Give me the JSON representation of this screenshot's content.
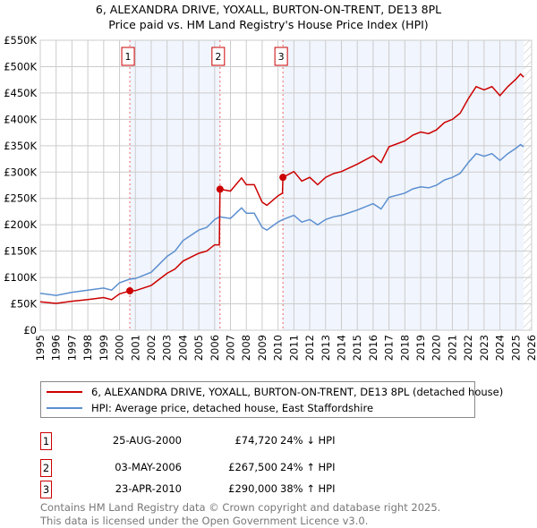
{
  "chart_data": {
    "type": "line",
    "title": "6, ALEXANDRA DRIVE, YOXALL, BURTON-ON-TRENT, DE13 8PL",
    "subtitle": "Price paid vs. HM Land Registry's House Price Index (HPI)",
    "xlim": [
      1995,
      2026
    ],
    "ylim": [
      0,
      550000
    ],
    "x_ticks": [
      "1995",
      "1996",
      "1997",
      "1998",
      "1999",
      "2000",
      "2001",
      "2002",
      "2003",
      "2004",
      "2005",
      "2006",
      "2007",
      "2008",
      "2009",
      "2010",
      "2011",
      "2012",
      "2013",
      "2014",
      "2015",
      "2016",
      "2017",
      "2018",
      "2019",
      "2020",
      "2021",
      "2022",
      "2023",
      "2024",
      "2025",
      "2026"
    ],
    "y_ticks": [
      {
        "v": 0,
        "label": "£0"
      },
      {
        "v": 50000,
        "label": "£50K"
      },
      {
        "v": 100000,
        "label": "£100K"
      },
      {
        "v": 150000,
        "label": "£150K"
      },
      {
        "v": 200000,
        "label": "£200K"
      },
      {
        "v": 250000,
        "label": "£250K"
      },
      {
        "v": 300000,
        "label": "£300K"
      },
      {
        "v": 350000,
        "label": "£350K"
      },
      {
        "v": 400000,
        "label": "£400K"
      },
      {
        "v": 450000,
        "label": "£450K"
      },
      {
        "v": 500000,
        "label": "£500K"
      },
      {
        "v": 550000,
        "label": "£550K"
      }
    ],
    "grid": true,
    "series": [
      {
        "name": "6, ALEXANDRA DRIVE, YOXALL, BURTON-ON-TRENT, DE13 8PL (detached house)",
        "color": "#cc0000",
        "x": [
          1995,
          1996,
          1997,
          1998,
          1999,
          1999.5,
          2000,
          2000.65,
          2001,
          2002,
          2003,
          2003.5,
          2004,
          2005,
          2005.5,
          2006,
          2006.3,
          2006.34,
          2007,
          2007.7,
          2008,
          2008.5,
          2009,
          2009.3,
          2010,
          2010.28,
          2010.31,
          2011,
          2011.5,
          2012,
          2012.5,
          2013,
          2013.5,
          2014,
          2015,
          2016,
          2016.5,
          2017,
          2018,
          2018.5,
          2019,
          2019.5,
          2020,
          2020.5,
          2021,
          2021.5,
          2022,
          2022.5,
          2023,
          2023.5,
          2024,
          2024.5,
          2025,
          2025.3,
          2025.5
        ],
        "y": [
          54000,
          51000,
          55000,
          58000,
          62000,
          58000,
          69000,
          74720,
          75000,
          85000,
          108000,
          116000,
          131000,
          146000,
          150000,
          162000,
          162000,
          267500,
          264000,
          289000,
          276000,
          276000,
          243000,
          237000,
          255000,
          260000,
          290000,
          301000,
          283000,
          290000,
          276000,
          290000,
          297000,
          301000,
          315000,
          331000,
          318000,
          348000,
          359000,
          370000,
          376000,
          373000,
          380000,
          394000,
          400000,
          412000,
          439000,
          462000,
          456000,
          462000,
          445000,
          462000,
          476000,
          486000,
          480000
        ]
      },
      {
        "name": "HPI: Average price, detached house, East Staffordshire",
        "color": "#5b8fd0",
        "x": [
          1995,
          1996,
          1997,
          1998,
          1999,
          1999.5,
          2000,
          2000.65,
          2001,
          2002,
          2003,
          2003.5,
          2004,
          2005,
          2005.5,
          2006,
          2006.3,
          2007,
          2007.7,
          2008,
          2008.5,
          2009,
          2009.3,
          2010,
          2010.3,
          2011,
          2011.5,
          2012,
          2012.5,
          2013,
          2013.5,
          2014,
          2015,
          2016,
          2016.5,
          2017,
          2018,
          2018.5,
          2019,
          2019.5,
          2020,
          2020.5,
          2021,
          2021.5,
          2022,
          2022.5,
          2023,
          2023.5,
          2024,
          2024.5,
          2025,
          2025.3,
          2025.5
        ],
        "y": [
          70000,
          66000,
          72000,
          76000,
          80000,
          76000,
          90000,
          97000,
          98000,
          110000,
          140000,
          150000,
          170000,
          190000,
          195000,
          210000,
          215000,
          212000,
          232000,
          222000,
          222000,
          195000,
          190000,
          205000,
          210000,
          218000,
          205000,
          210000,
          200000,
          210000,
          215000,
          218000,
          228000,
          240000,
          230000,
          252000,
          260000,
          268000,
          272000,
          270000,
          275000,
          285000,
          290000,
          298000,
          318000,
          335000,
          330000,
          335000,
          322000,
          335000,
          345000,
          352000,
          348000
        ]
      }
    ],
    "sales": [
      {
        "n": "1",
        "x": 2000.65,
        "y": 74720,
        "date": "25-AUG-2000",
        "price": "£74,720",
        "hpi": "24% ↓ HPI"
      },
      {
        "n": "2",
        "x": 2006.34,
        "y": 267500,
        "date": "03-MAY-2006",
        "price": "£267,500",
        "hpi": "24% ↑ HPI"
      },
      {
        "n": "3",
        "x": 2010.31,
        "y": 290000,
        "date": "23-APR-2010",
        "price": "£290,000",
        "hpi": "38% ↑ HPI"
      }
    ],
    "shaded_ranges": [
      [
        2000.65,
        2006.34
      ],
      [
        2010.31,
        2025.5
      ]
    ],
    "forecast_hatch_from": 2025.5,
    "legend_position": "bottom"
  },
  "footer": {
    "line1": "Contains HM Land Registry data © Crown copyright and database right 2025.",
    "line2": "This data is licensed under the Open Government Licence v3.0."
  }
}
